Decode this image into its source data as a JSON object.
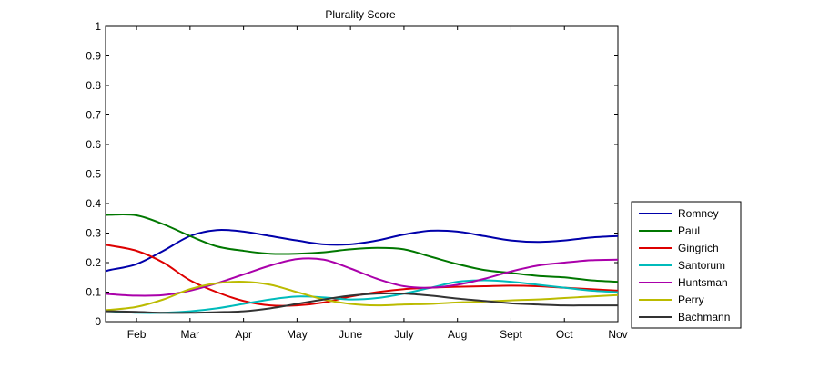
{
  "chart_data": {
    "type": "line",
    "title": "Plurality Score",
    "xlabel": "",
    "ylabel": "",
    "ylim": [
      0,
      1
    ],
    "yticks": [
      0,
      0.1,
      0.2,
      0.3,
      0.4,
      0.5,
      0.6,
      0.7,
      0.8,
      0.9,
      1
    ],
    "ytick_labels": [
      "0",
      "0.1",
      "0.2",
      "0.3",
      "0.4",
      "0.5",
      "0.6",
      "0.7",
      "0.8",
      "0.9",
      "1"
    ],
    "x_categories": [
      "Feb",
      "Mar",
      "Apr",
      "May",
      "June",
      "July",
      "Aug",
      "Sept",
      "Oct",
      "Nov"
    ],
    "x": [
      -0.58,
      -0.5,
      0,
      0.5,
      1,
      1.5,
      2,
      2.5,
      3,
      3.5,
      4,
      4.5,
      5,
      5.5,
      6,
      6.5,
      7,
      7.5,
      8,
      8.5,
      9
    ],
    "xlim": [
      -0.58,
      9
    ],
    "grid": false,
    "legend_position": "bottom-right-outside",
    "series": [
      {
        "name": "Romney",
        "color": "#0000aa",
        "values": [
          0.17,
          0.175,
          0.195,
          0.24,
          0.29,
          0.31,
          0.305,
          0.29,
          0.275,
          0.262,
          0.262,
          0.275,
          0.295,
          0.308,
          0.305,
          0.29,
          0.275,
          0.27,
          0.275,
          0.285,
          0.29
        ]
      },
      {
        "name": "Paul",
        "color": "#007700",
        "values": [
          0.36,
          0.362,
          0.36,
          0.33,
          0.29,
          0.255,
          0.24,
          0.23,
          0.23,
          0.235,
          0.245,
          0.25,
          0.245,
          0.22,
          0.195,
          0.175,
          0.165,
          0.155,
          0.15,
          0.14,
          0.135
        ]
      },
      {
        "name": "Gingrich",
        "color": "#dd0000",
        "values": [
          0.26,
          0.258,
          0.24,
          0.2,
          0.14,
          0.1,
          0.07,
          0.055,
          0.055,
          0.065,
          0.085,
          0.1,
          0.11,
          0.115,
          0.118,
          0.12,
          0.122,
          0.12,
          0.115,
          0.11,
          0.105
        ]
      },
      {
        "name": "Santorum",
        "color": "#00bbbb",
        "values": [
          0.035,
          0.035,
          0.03,
          0.03,
          0.035,
          0.045,
          0.06,
          0.075,
          0.085,
          0.082,
          0.075,
          0.08,
          0.095,
          0.115,
          0.135,
          0.14,
          0.135,
          0.125,
          0.115,
          0.105,
          0.1
        ]
      },
      {
        "name": "Huntsman",
        "color": "#aa00aa",
        "values": [
          0.095,
          0.093,
          0.088,
          0.09,
          0.105,
          0.13,
          0.16,
          0.19,
          0.212,
          0.21,
          0.18,
          0.145,
          0.12,
          0.115,
          0.125,
          0.145,
          0.17,
          0.19,
          0.2,
          0.208,
          0.21
        ]
      },
      {
        "name": "Perry",
        "color": "#bbbb00",
        "values": [
          0.04,
          0.04,
          0.05,
          0.075,
          0.11,
          0.13,
          0.135,
          0.125,
          0.1,
          0.075,
          0.06,
          0.055,
          0.058,
          0.06,
          0.065,
          0.068,
          0.072,
          0.075,
          0.08,
          0.085,
          0.09
        ]
      },
      {
        "name": "Bachmann",
        "color": "#333333",
        "values": [
          0.035,
          0.035,
          0.033,
          0.03,
          0.03,
          0.032,
          0.035,
          0.045,
          0.06,
          0.075,
          0.088,
          0.095,
          0.095,
          0.088,
          0.078,
          0.07,
          0.062,
          0.058,
          0.055,
          0.055,
          0.055
        ]
      }
    ]
  }
}
